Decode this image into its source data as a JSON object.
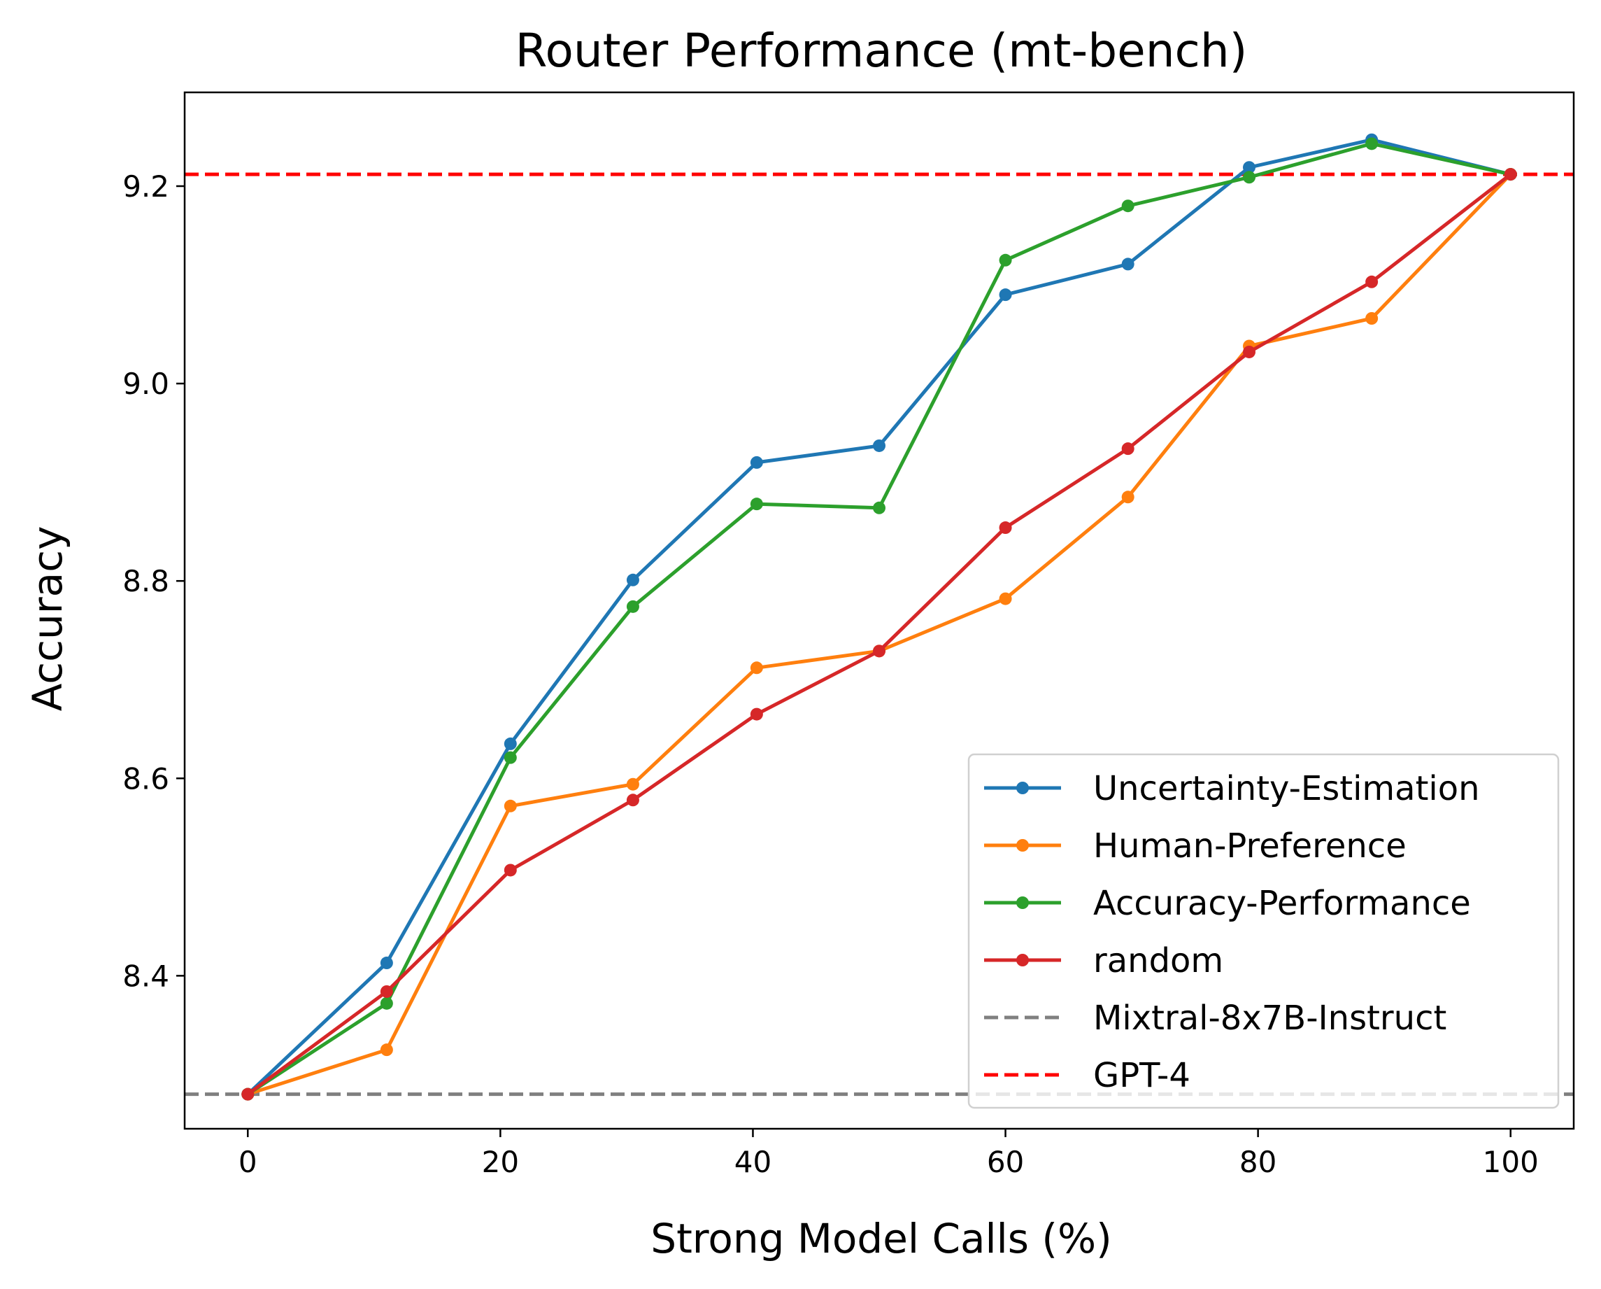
{
  "chart_data": {
    "type": "line",
    "title": "Router Performance (mt-bench)",
    "xlabel": "Strong Model Calls (%)",
    "ylabel": "Accuracy",
    "xlim": [
      -5,
      105
    ],
    "ylim": [
      8.245,
      9.295
    ],
    "xticks": [
      0,
      20,
      40,
      60,
      80,
      100
    ],
    "yticks": [
      8.4,
      8.6,
      8.8,
      9.0,
      9.2
    ],
    "ytick_labels": [
      "8.4",
      "8.6",
      "8.8",
      "9.0",
      "9.2"
    ],
    "legend_position": "lower-right",
    "grid": false,
    "series": [
      {
        "name": "Uncertainty-Estimation",
        "color": "#1f77b4",
        "marker": true,
        "x": [
          0,
          11,
          20.8,
          30.5,
          40.3,
          50,
          60,
          69.7,
          79.3,
          89,
          100
        ],
        "y": [
          8.28,
          8.413,
          8.635,
          8.801,
          8.92,
          8.937,
          9.09,
          9.121,
          9.219,
          9.247,
          9.212
        ]
      },
      {
        "name": "Human-Preference",
        "color": "#ff7f0e",
        "marker": true,
        "x": [
          0,
          11,
          20.8,
          30.5,
          40.3,
          50,
          60,
          69.7,
          79.3,
          89,
          100
        ],
        "y": [
          8.28,
          8.325,
          8.572,
          8.594,
          8.712,
          8.729,
          8.782,
          8.885,
          9.038,
          9.066,
          9.212
        ]
      },
      {
        "name": "Accuracy-Performance",
        "color": "#2ca02c",
        "marker": true,
        "x": [
          0,
          11,
          20.8,
          30.5,
          40.3,
          50,
          60,
          69.7,
          79.3,
          89,
          100
        ],
        "y": [
          8.28,
          8.372,
          8.621,
          8.774,
          8.878,
          8.874,
          9.125,
          9.18,
          9.209,
          9.243,
          9.212
        ]
      },
      {
        "name": "random",
        "color": "#d62728",
        "marker": true,
        "x": [
          0,
          11,
          20.8,
          30.5,
          40.3,
          50,
          60,
          69.7,
          79.3,
          89,
          100
        ],
        "y": [
          8.28,
          8.384,
          8.507,
          8.578,
          8.665,
          8.729,
          8.854,
          8.934,
          9.032,
          9.103,
          9.212
        ]
      },
      {
        "name": "Mixtral-8x7B-Instruct",
        "color": "#808080",
        "marker": false,
        "dashed": true,
        "hline": 8.28
      },
      {
        "name": "GPT-4",
        "color": "#ff0000",
        "marker": false,
        "dashed": true,
        "hline": 9.212
      }
    ]
  }
}
